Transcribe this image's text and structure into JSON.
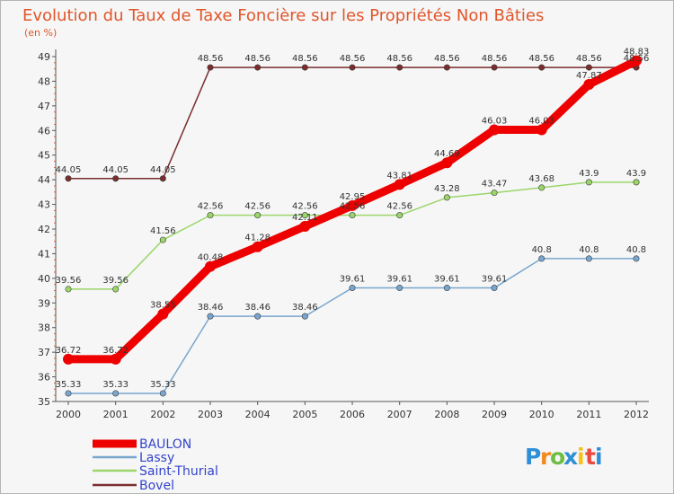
{
  "chart_data": {
    "type": "line",
    "title": "Evolution du Taux de Taxe Foncière sur les Propriétés Non Bâties",
    "subtitle": "(en %)",
    "xlabel": "",
    "ylabel": "",
    "x": [
      "2000",
      "2001",
      "2002",
      "2003",
      "2004",
      "2005",
      "2006",
      "2007",
      "2008",
      "2009",
      "2010",
      "2011",
      "2012"
    ],
    "ylim": [
      35,
      49
    ],
    "yticks": [
      "35",
      "36",
      "37",
      "38",
      "39",
      "40",
      "41",
      "42",
      "43",
      "44",
      "45",
      "46",
      "47",
      "48",
      "49"
    ],
    "grid": false,
    "legend_position": "bottom-left",
    "series": [
      {
        "name": "BAULON",
        "color": "#ee0000",
        "values": [
          36.72,
          36.72,
          38.55,
          40.48,
          41.28,
          42.11,
          42.95,
          43.81,
          44.69,
          46.03,
          46.03,
          47.87,
          48.83
        ],
        "labels": [
          "36.72",
          "36.72",
          "38.55",
          "40.48",
          "41.28",
          "42.11",
          "42.95",
          "43.81",
          "44.69",
          "46.03",
          "46.03",
          "47.87",
          "48.83"
        ]
      },
      {
        "name": "Lassy",
        "color": "#79a6cf",
        "values": [
          35.33,
          35.33,
          35.33,
          38.46,
          38.46,
          38.46,
          39.61,
          39.61,
          39.61,
          39.61,
          40.8,
          40.8,
          40.8
        ],
        "labels": [
          "35.33",
          "35.33",
          "35.33",
          "38.46",
          "38.46",
          "38.46",
          "39.61",
          "39.61",
          "39.61",
          "39.61",
          "40.8",
          "40.8",
          "40.8"
        ]
      },
      {
        "name": "Saint-Thurial",
        "color": "#9bd66a",
        "values": [
          39.56,
          39.56,
          41.56,
          42.56,
          42.56,
          42.56,
          42.56,
          42.56,
          43.28,
          43.47,
          43.68,
          43.9,
          43.9
        ],
        "labels": [
          "39.56",
          "39.56",
          "41.56",
          "42.56",
          "42.56",
          "42.56",
          "42.56",
          "42.56",
          "43.28",
          "43.47",
          "43.68",
          "43.9",
          "43.9"
        ]
      },
      {
        "name": "Bovel",
        "color": "#7a2d2d",
        "values": [
          44.05,
          44.05,
          44.05,
          48.56,
          48.56,
          48.56,
          48.56,
          48.56,
          48.56,
          48.56,
          48.56,
          48.56,
          48.56
        ],
        "labels": [
          "44.05",
          "44.05",
          "44.05",
          "48.56",
          "48.56",
          "48.56",
          "48.56",
          "48.56",
          "48.56",
          "48.56",
          "48.56",
          "48.56",
          "48.56"
        ]
      }
    ]
  },
  "logo": {
    "letters": [
      "P",
      "r",
      "o",
      "x",
      "i",
      "t",
      "i"
    ],
    "colors": [
      "#2f8fd6",
      "#f18a1c",
      "#6fbe44",
      "#2f8fd6",
      "#f5c215",
      "#ea4b3c",
      "#2f8fd6"
    ]
  }
}
